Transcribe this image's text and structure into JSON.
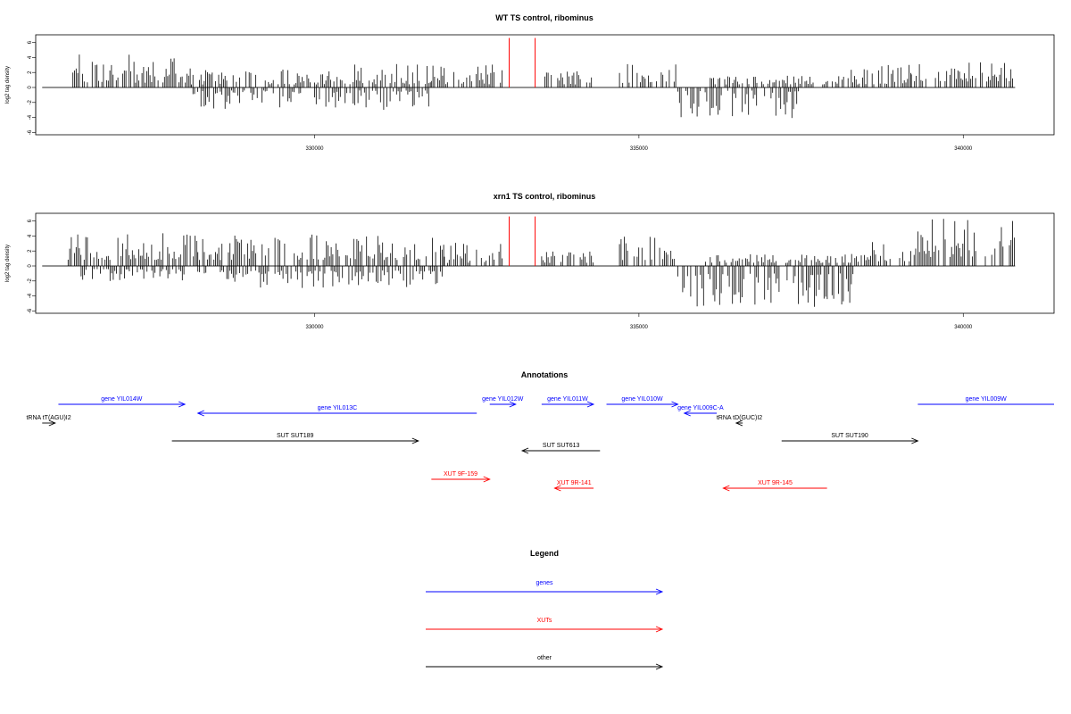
{
  "chart_data": [
    {
      "type": "bar",
      "title": "WT TS control, ribominus",
      "ylabel": "log2 tag density",
      "xlabel": "",
      "x_ticks": [
        330000,
        335000,
        340000
      ],
      "y_ticks": [
        6,
        4,
        2,
        0,
        -2,
        -4,
        -6
      ],
      "xlim": [
        325700,
        341400
      ],
      "ylim": [
        -6,
        6.8
      ],
      "grid": false,
      "highlights": [
        {
          "x": 333000,
          "value": 6.6,
          "color": "#ff0000"
        },
        {
          "x": 333400,
          "value": 6.6,
          "color": "#ff0000"
        }
      ],
      "segments": [
        {
          "from": 326200,
          "to": 328100,
          "sign": 1,
          "min": 0.6,
          "max": 4.6
        },
        {
          "from": 328100,
          "to": 330000,
          "sign": 1,
          "min": 0.4,
          "max": 2.4
        },
        {
          "from": 328100,
          "to": 330000,
          "sign": -1,
          "min": 0.4,
          "max": 3.0
        },
        {
          "from": 330000,
          "to": 331800,
          "sign": 1,
          "min": 0.4,
          "max": 3.2
        },
        {
          "from": 330000,
          "to": 331800,
          "sign": -1,
          "min": 0.4,
          "max": 3.2
        },
        {
          "from": 331800,
          "to": 332900,
          "sign": 1,
          "min": 0.4,
          "max": 3.2
        },
        {
          "from": 333500,
          "to": 334300,
          "sign": 1,
          "min": 0.4,
          "max": 2.2
        },
        {
          "from": 334700,
          "to": 335600,
          "sign": 1,
          "min": 0.6,
          "max": 3.2
        },
        {
          "from": 335600,
          "to": 337500,
          "sign": -1,
          "min": 0.4,
          "max": 4.2
        },
        {
          "from": 336100,
          "to": 338200,
          "sign": 1,
          "min": 0.4,
          "max": 1.6
        },
        {
          "from": 338200,
          "to": 339200,
          "sign": 1,
          "min": 0.4,
          "max": 3.0
        },
        {
          "from": 339200,
          "to": 340800,
          "sign": 1,
          "min": 0.8,
          "max": 3.4
        }
      ]
    },
    {
      "type": "bar",
      "title": "xrn1 TS control, ribominus",
      "ylabel": "log2 tag density",
      "xlabel": "",
      "x_ticks": [
        330000,
        335000,
        340000
      ],
      "y_ticks": [
        6,
        4,
        2,
        0,
        -2,
        -4,
        -6
      ],
      "xlim": [
        325700,
        341400
      ],
      "ylim": [
        -6,
        6.8
      ],
      "grid": false,
      "highlights": [
        {
          "x": 333000,
          "value": 6.6,
          "color": "#ff0000"
        },
        {
          "x": 333400,
          "value": 6.6,
          "color": "#ff0000"
        }
      ],
      "segments": [
        {
          "from": 326200,
          "to": 328200,
          "sign": 1,
          "min": 0.8,
          "max": 4.4
        },
        {
          "from": 326400,
          "to": 328000,
          "sign": -1,
          "min": 0.4,
          "max": 2.0
        },
        {
          "from": 328200,
          "to": 332000,
          "sign": 1,
          "min": 0.8,
          "max": 4.2
        },
        {
          "from": 328200,
          "to": 332000,
          "sign": -1,
          "min": 0.6,
          "max": 3.0
        },
        {
          "from": 332000,
          "to": 332900,
          "sign": 1,
          "min": 0.4,
          "max": 3.4
        },
        {
          "from": 333500,
          "to": 334300,
          "sign": 1,
          "min": 0.4,
          "max": 2.0
        },
        {
          "from": 334700,
          "to": 335600,
          "sign": 1,
          "min": 0.8,
          "max": 4.0
        },
        {
          "from": 335600,
          "to": 338300,
          "sign": -1,
          "min": 1.0,
          "max": 5.6
        },
        {
          "from": 336000,
          "to": 338500,
          "sign": 1,
          "min": 0.4,
          "max": 1.6
        },
        {
          "from": 338500,
          "to": 339300,
          "sign": 1,
          "min": 0.6,
          "max": 3.2
        },
        {
          "from": 339300,
          "to": 340800,
          "sign": 1,
          "min": 1.2,
          "max": 6.4
        }
      ]
    }
  ],
  "annotations": {
    "title": "Annotations",
    "items": [
      {
        "label": "gene YIL014W",
        "color": "#0000ff",
        "from": 326050,
        "to": 328000,
        "row": 0,
        "arrow": "right"
      },
      {
        "label": "gene YIL013C",
        "color": "#0000ff",
        "from": 328200,
        "to": 332500,
        "row": 1,
        "arrow": "left"
      },
      {
        "label": "tRNA tT(AGU)I2",
        "color": "#000000",
        "from": 325800,
        "to": 326000,
        "row": 2,
        "arrow": "right"
      },
      {
        "label": "SUT SUT189",
        "color": "#000000",
        "from": 327800,
        "to": 331600,
        "row": 3,
        "arrow": "right"
      },
      {
        "label": "gene YIL012W",
        "color": "#0000ff",
        "from": 332700,
        "to": 333100,
        "row": 0,
        "arrow": "right"
      },
      {
        "label": "gene YIL011W",
        "color": "#0000ff",
        "from": 333500,
        "to": 334300,
        "row": 0,
        "arrow": "right"
      },
      {
        "label": "gene YIL010W",
        "color": "#0000ff",
        "from": 334500,
        "to": 335600,
        "row": 0,
        "arrow": "right"
      },
      {
        "label": "gene YIL009C-A",
        "color": "#0000ff",
        "from": 335700,
        "to": 336200,
        "row": 1,
        "arrow": "left"
      },
      {
        "label": "tRNA tD(GUC)I2",
        "color": "#000000",
        "from": 336500,
        "to": 336600,
        "row": 2,
        "arrow": "left"
      },
      {
        "label": "SUT SUT613",
        "color": "#000000",
        "from": 333200,
        "to": 334400,
        "row": 4,
        "arrow": "left"
      },
      {
        "label": "SUT SUT190",
        "color": "#000000",
        "from": 337200,
        "to": 339300,
        "row": 3,
        "arrow": "right"
      },
      {
        "label": "gene YIL009W",
        "color": "#0000ff",
        "from": 339300,
        "to": 341400,
        "row": 0,
        "arrow": "none"
      },
      {
        "label": "XUT 9F-159",
        "color": "#ff0000",
        "from": 331800,
        "to": 332700,
        "row": 5,
        "arrow": "right"
      },
      {
        "label": "XUT 9R-141",
        "color": "#ff0000",
        "from": 333700,
        "to": 334300,
        "row": 6,
        "arrow": "left"
      },
      {
        "label": "XUT 9R-145",
        "color": "#ff0000",
        "from": 336300,
        "to": 337900,
        "row": 6,
        "arrow": "left"
      }
    ]
  },
  "legend": {
    "title": "Legend",
    "items": [
      {
        "label": "genes",
        "color": "#0000ff"
      },
      {
        "label": "XUTs",
        "color": "#ff0000"
      },
      {
        "label": "other",
        "color": "#000000"
      }
    ]
  }
}
